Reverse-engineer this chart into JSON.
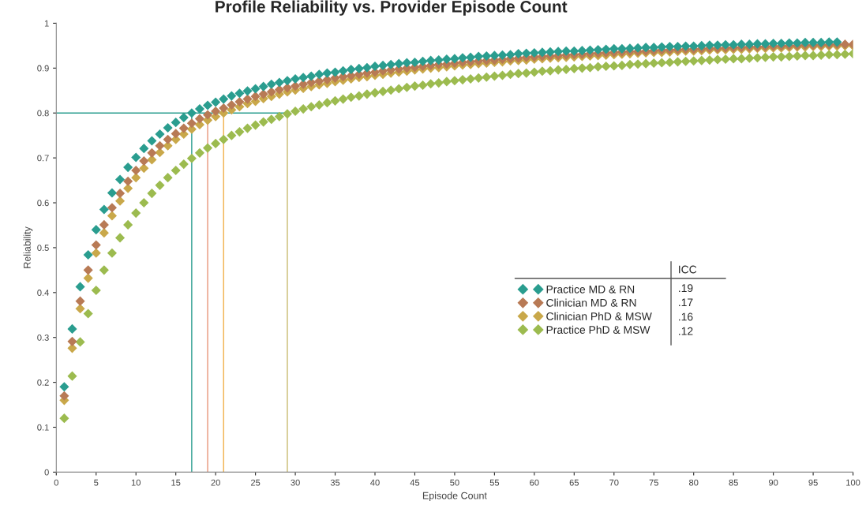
{
  "chart_data": {
    "type": "scatter",
    "title": "Profile Reliability vs. Provider Episode Count",
    "xlabel": "Episode Count",
    "ylabel": "Reliability",
    "x": [
      1,
      2,
      3,
      4,
      5,
      6,
      7,
      8,
      9,
      10,
      11,
      12,
      13,
      14,
      15,
      16,
      17,
      18,
      19,
      20,
      21,
      22,
      23,
      24,
      25,
      26,
      27,
      28,
      29,
      30,
      31,
      32,
      33,
      34,
      35,
      36,
      37,
      38,
      39,
      40,
      41,
      42,
      43,
      44,
      45,
      46,
      47,
      48,
      49,
      50,
      51,
      52,
      53,
      54,
      55,
      56,
      57,
      58,
      59,
      60,
      61,
      62,
      63,
      64,
      65,
      66,
      67,
      68,
      69,
      70,
      71,
      72,
      73,
      74,
      75,
      76,
      77,
      78,
      79,
      80,
      81,
      82,
      83,
      84,
      85,
      86,
      87,
      88,
      89,
      90,
      91,
      92,
      93,
      94,
      95,
      96,
      97,
      98,
      99,
      100
    ],
    "series": [
      {
        "name": "Practice MD & RN",
        "color": "#2a9d8f",
        "values": [
          0.19,
          0.319,
          0.413,
          0.484,
          0.54,
          0.585,
          0.622,
          0.652,
          0.679,
          0.701,
          0.721,
          0.738,
          0.753,
          0.767,
          0.779,
          0.79,
          0.8,
          0.809,
          0.817,
          0.824,
          0.831,
          0.838,
          0.844,
          0.849,
          0.854,
          0.859,
          0.864,
          0.868,
          0.872,
          0.876,
          0.879,
          0.882,
          0.886,
          0.889,
          0.891,
          0.894,
          0.897,
          0.899,
          0.901,
          0.904,
          0.906,
          0.908,
          0.91,
          0.912,
          0.913,
          0.915,
          0.917,
          0.918,
          0.92,
          0.921,
          0.923,
          0.924,
          0.926,
          0.927,
          0.928,
          0.929,
          0.93,
          0.932,
          0.933,
          0.934,
          0.935,
          0.936,
          0.937,
          0.938,
          0.938,
          0.939,
          0.94,
          0.941,
          0.942,
          0.943,
          0.943,
          0.944,
          0.945,
          0.946,
          0.946,
          0.947,
          0.948,
          0.948,
          0.949,
          0.949,
          0.95,
          0.951,
          0.951,
          0.952,
          0.952,
          0.953,
          0.953,
          0.954,
          0.954,
          0.955,
          0.955,
          0.956,
          0.956,
          0.957,
          0.957,
          0.957,
          0.958,
          0.958,
          null,
          null
        ]
      },
      {
        "name": "Clinician MD & RN",
        "color": "#b87a55",
        "values": [
          0.17,
          0.291,
          0.381,
          0.45,
          0.506,
          0.551,
          0.589,
          0.621,
          0.648,
          0.672,
          0.693,
          0.711,
          0.727,
          0.741,
          0.754,
          0.766,
          0.777,
          0.787,
          0.796,
          0.804,
          0.811,
          0.818,
          0.825,
          0.831,
          0.837,
          0.842,
          0.847,
          0.852,
          0.856,
          0.86,
          0.864,
          0.868,
          0.871,
          0.874,
          0.878,
          0.881,
          0.883,
          0.886,
          0.889,
          0.891,
          0.894,
          0.896,
          0.898,
          0.9,
          0.902,
          0.904,
          0.906,
          0.908,
          0.909,
          0.911,
          0.913,
          0.914,
          0.916,
          0.917,
          0.918,
          0.92,
          0.921,
          0.922,
          0.924,
          0.925,
          0.926,
          0.927,
          0.928,
          0.929,
          0.93,
          0.931,
          0.932,
          0.933,
          0.934,
          0.935,
          0.936,
          0.937,
          0.937,
          0.938,
          0.939,
          0.94,
          0.94,
          0.941,
          0.942,
          0.942,
          0.943,
          0.944,
          0.944,
          0.945,
          0.946,
          0.946,
          0.947,
          0.947,
          0.948,
          0.949,
          0.949,
          0.95,
          0.95,
          0.951,
          0.951,
          0.952,
          0.952,
          0.953,
          0.953,
          0.953
        ]
      },
      {
        "name": "Clinician PhD & MSW",
        "color": "#c9a84a",
        "values": [
          0.16,
          0.276,
          0.364,
          0.432,
          0.488,
          0.533,
          0.571,
          0.604,
          0.632,
          0.656,
          0.677,
          0.696,
          0.712,
          0.727,
          0.741,
          0.753,
          0.764,
          0.774,
          0.784,
          0.792,
          0.8,
          0.807,
          0.814,
          0.821,
          0.826,
          0.832,
          0.837,
          0.842,
          0.847,
          0.851,
          0.855,
          0.859,
          0.863,
          0.866,
          0.87,
          0.873,
          0.876,
          0.879,
          0.881,
          0.884,
          0.886,
          0.889,
          0.891,
          0.893,
          0.896,
          0.898,
          0.9,
          0.901,
          0.903,
          0.905,
          0.907,
          0.908,
          0.91,
          0.911,
          0.913,
          0.914,
          0.916,
          0.917,
          0.918,
          0.92,
          0.921,
          0.922,
          0.923,
          0.924,
          0.925,
          0.926,
          0.927,
          0.928,
          0.929,
          0.93,
          0.931,
          0.932,
          0.933,
          0.934,
          0.935,
          0.935,
          0.936,
          0.937,
          0.938,
          0.938,
          0.939,
          0.94,
          0.941,
          0.941,
          0.942,
          0.942,
          0.943,
          0.944,
          0.944,
          0.945,
          0.945,
          0.946,
          0.947,
          0.947,
          0.948,
          0.948,
          0.949,
          0.949,
          0.95,
          0.95
        ]
      },
      {
        "name": "Practice PhD & MSW",
        "color": "#9cbb4f",
        "values": [
          0.12,
          0.214,
          0.29,
          0.353,
          0.405,
          0.45,
          0.488,
          0.522,
          0.551,
          0.577,
          0.6,
          0.621,
          0.639,
          0.656,
          0.672,
          0.686,
          0.699,
          0.711,
          0.722,
          0.732,
          0.741,
          0.75,
          0.758,
          0.766,
          0.773,
          0.78,
          0.786,
          0.792,
          0.798,
          0.804,
          0.809,
          0.814,
          0.818,
          0.823,
          0.827,
          0.831,
          0.835,
          0.838,
          0.842,
          0.845,
          0.848,
          0.851,
          0.854,
          0.857,
          0.86,
          0.862,
          0.865,
          0.867,
          0.87,
          0.872,
          0.874,
          0.876,
          0.878,
          0.88,
          0.882,
          0.884,
          0.886,
          0.888,
          0.889,
          0.891,
          0.893,
          0.894,
          0.896,
          0.897,
          0.899,
          0.9,
          0.901,
          0.903,
          0.904,
          0.905,
          0.906,
          0.908,
          0.909,
          0.91,
          0.911,
          0.912,
          0.913,
          0.914,
          0.915,
          0.916,
          0.917,
          0.918,
          0.919,
          0.92,
          0.921,
          0.921,
          0.922,
          0.923,
          0.924,
          0.925,
          0.925,
          0.926,
          0.927,
          0.928,
          0.928,
          0.929,
          0.93,
          0.93,
          0.931,
          0.932
        ]
      }
    ],
    "xlim": [
      0,
      100
    ],
    "xticks": [
      0,
      5,
      10,
      15,
      20,
      25,
      30,
      35,
      40,
      45,
      50,
      55,
      60,
      65,
      70,
      75,
      80,
      85,
      90,
      95,
      100
    ],
    "ylim": [
      0,
      1
    ],
    "yticks": [
      0,
      0.1,
      0.2,
      0.3,
      0.4,
      0.5,
      0.6,
      0.7,
      0.8,
      0.9,
      1
    ],
    "ref_lines": [
      {
        "axis": "y",
        "value": 0.8,
        "color": "#2a9d8f"
      },
      {
        "axis": "x",
        "value": 17,
        "color": "#2a9d8f"
      },
      {
        "axis": "x",
        "value": 19,
        "color": "#e8957a"
      },
      {
        "axis": "x",
        "value": 21,
        "color": "#f0b04a"
      },
      {
        "axis": "x",
        "value": 29,
        "color": "#c9bb6f"
      }
    ],
    "annotations": [
      "ICC",
      ".19",
      ".17",
      ".16",
      ".12"
    ],
    "marker": "diamond",
    "grid": false,
    "legend": "center right"
  }
}
